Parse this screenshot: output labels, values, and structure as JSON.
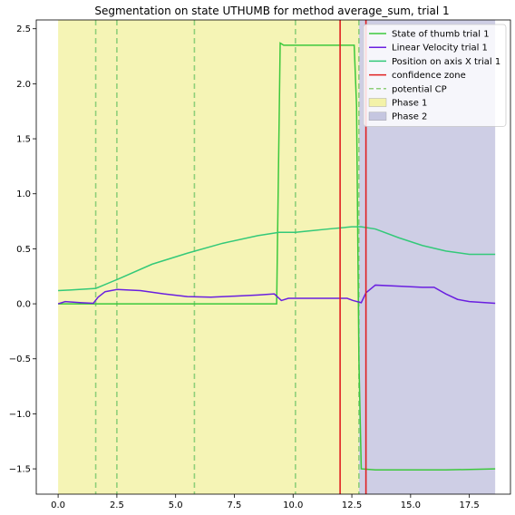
{
  "chart_data": {
    "type": "line",
    "title": "Segmentation on state UTHUMB for method average_sum, trial 1",
    "xlabel": "",
    "ylabel": "",
    "xlim": [
      -0.93,
      19.25
    ],
    "ylim": [
      -1.73,
      2.58
    ],
    "x_ticks": [
      0.0,
      2.5,
      5.0,
      7.5,
      10.0,
      12.5,
      15.0,
      17.5
    ],
    "x_tick_labels": [
      "0.0",
      "2.5",
      "5.0",
      "7.5",
      "10.0",
      "12.5",
      "15.0",
      "17.5"
    ],
    "y_ticks": [
      -1.5,
      -1.0,
      -0.5,
      0.0,
      0.5,
      1.0,
      1.5,
      2.0,
      2.5
    ],
    "y_tick_labels": [
      "−1.5",
      "−1.0",
      "−0.5",
      "0.0",
      "0.5",
      "1.0",
      "1.5",
      "2.0",
      "2.5"
    ],
    "legend_position": "top-right",
    "phases": [
      {
        "name": "Phase 1",
        "x0": 0.0,
        "x1": 12.8,
        "color": "#f3f2a8"
      },
      {
        "name": "Phase 2",
        "x0": 12.8,
        "x1": 18.6,
        "color": "#c5c6e0"
      }
    ],
    "potential_cp": {
      "name": "potential CP",
      "color": "#8fcf7a",
      "x": [
        1.6,
        2.5,
        5.8,
        10.1,
        12.8
      ]
    },
    "confidence_zone": {
      "name": "confidence zone",
      "color": "#e02020",
      "x": [
        12.0,
        13.1
      ]
    },
    "series": [
      {
        "name": "State of thumb trial 1",
        "color": "#3cc83c",
        "points": [
          [
            0.0,
            0.0
          ],
          [
            9.3,
            0.0
          ],
          [
            9.45,
            2.37
          ],
          [
            9.6,
            2.35
          ],
          [
            12.6,
            2.35
          ],
          [
            12.7,
            1.8
          ],
          [
            12.8,
            -0.5
          ],
          [
            12.9,
            -1.5
          ],
          [
            13.5,
            -1.51
          ],
          [
            15.0,
            -1.51
          ],
          [
            16.5,
            -1.51
          ],
          [
            18.6,
            -1.5
          ]
        ]
      },
      {
        "name": "Linear Velocity trial 1",
        "color": "#6a1fe0",
        "points": [
          [
            0.0,
            0.0
          ],
          [
            0.3,
            0.02
          ],
          [
            1.0,
            0.01
          ],
          [
            1.5,
            0.005
          ],
          [
            1.7,
            0.06
          ],
          [
            2.0,
            0.11
          ],
          [
            2.5,
            0.13
          ],
          [
            3.5,
            0.12
          ],
          [
            4.5,
            0.09
          ],
          [
            5.5,
            0.065
          ],
          [
            6.5,
            0.06
          ],
          [
            7.5,
            0.07
          ],
          [
            8.5,
            0.08
          ],
          [
            9.2,
            0.09
          ],
          [
            9.5,
            0.03
          ],
          [
            9.8,
            0.05
          ],
          [
            11.0,
            0.05
          ],
          [
            12.3,
            0.05
          ],
          [
            12.55,
            0.03
          ],
          [
            12.9,
            0.01
          ],
          [
            13.1,
            0.1
          ],
          [
            13.5,
            0.17
          ],
          [
            14.5,
            0.16
          ],
          [
            15.5,
            0.15
          ],
          [
            16.0,
            0.15
          ],
          [
            16.5,
            0.09
          ],
          [
            17.0,
            0.04
          ],
          [
            17.5,
            0.02
          ],
          [
            18.6,
            0.005
          ]
        ]
      },
      {
        "name": "Position on axis X trial 1",
        "color": "#33c979",
        "points": [
          [
            0.0,
            0.12
          ],
          [
            0.5,
            0.125
          ],
          [
            1.6,
            0.14
          ],
          [
            2.5,
            0.22
          ],
          [
            4.0,
            0.36
          ],
          [
            5.5,
            0.46
          ],
          [
            7.0,
            0.55
          ],
          [
            8.5,
            0.62
          ],
          [
            9.4,
            0.65
          ],
          [
            10.1,
            0.65
          ],
          [
            11.5,
            0.68
          ],
          [
            12.5,
            0.7
          ],
          [
            12.9,
            0.7
          ],
          [
            13.5,
            0.68
          ],
          [
            14.5,
            0.6
          ],
          [
            15.5,
            0.53
          ],
          [
            16.5,
            0.48
          ],
          [
            17.5,
            0.45
          ],
          [
            18.6,
            0.45
          ]
        ]
      }
    ]
  }
}
